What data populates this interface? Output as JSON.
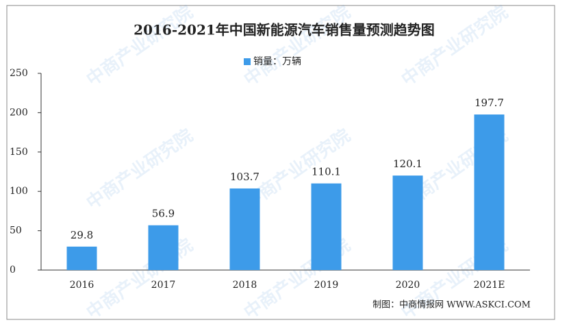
{
  "chart_data": {
    "type": "bar",
    "title": "2016-2021年中国新能源汽车销售量预测趋势图",
    "legend": "销量：万辆",
    "categories": [
      "2016",
      "2017",
      "2018",
      "2019",
      "2020",
      "2021E"
    ],
    "values": [
      29.8,
      56.9,
      103.7,
      110.1,
      120.1,
      197.7
    ],
    "color": "#3d9be9",
    "ylim": [
      0,
      250
    ],
    "yticks": [
      0,
      50,
      100,
      150,
      200,
      250
    ],
    "grid": false,
    "source": "制图：中商情报网 WWW.ASKCI.COM",
    "watermark": "中商产业研究院"
  }
}
